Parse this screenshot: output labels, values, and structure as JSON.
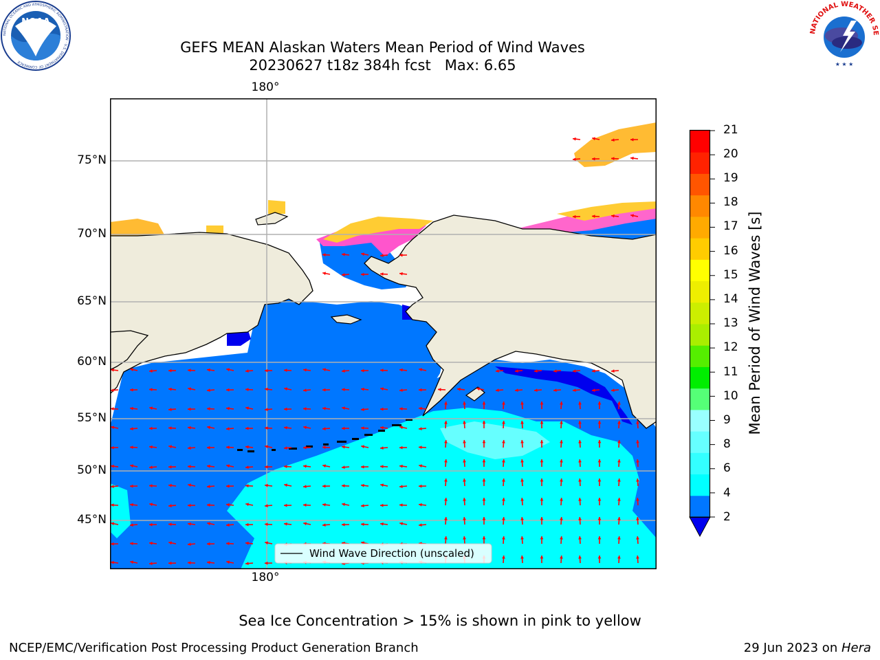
{
  "header": {
    "title_line1": "GEFS MEAN Alaskan Waters Mean Period of Wind Waves",
    "title_line2": "20230627 t18z 384h fcst   Max: 6.65"
  },
  "logos": {
    "noaa_text": "NOAA",
    "noaa_ring": "NATIONAL OCEANIC AND ATMOSPHERIC ADMINISTRATION · U.S. DEPARTMENT OF COMMERCE",
    "nws_ring": "NATIONAL WEATHER SERVICE"
  },
  "map": {
    "lon_label_top": "180°",
    "lon_label_bottom": "180°",
    "lat_labels": [
      "75°N",
      "70°N",
      "65°N",
      "60°N",
      "55°N",
      "50°N",
      "45°N"
    ],
    "legend_label": "Wind Wave Direction (unscaled)",
    "land_color": "#efecdc",
    "grid_color": "#b0b0b0",
    "arrow_color": "#ff0000"
  },
  "colorbar": {
    "label": "Mean Period of Wind Waves [s]",
    "ticks": [
      "21",
      "20",
      "19",
      "18",
      "17",
      "16",
      "15",
      "14",
      "13",
      "12",
      "11",
      "10",
      "9",
      "8",
      "6",
      "4",
      "2"
    ],
    "colors_bottom_to_top": [
      "#0077ff",
      "#00ffff",
      "#33ffff",
      "#66ffff",
      "#99ffff",
      "#55ff77",
      "#00ee00",
      "#55ee00",
      "#aaee00",
      "#ccee00",
      "#eeee00",
      "#ffff00",
      "#ffcc00",
      "#ffaa00",
      "#ff8800",
      "#ff5500",
      "#ff2200",
      "#ff0000"
    ],
    "under_color": "#0000ee"
  },
  "footer": {
    "sea_ice_note": "Sea Ice Concentration > 15% is shown in pink to yellow",
    "branch": "NCEP/EMC/Verification Post Processing Product Generation Branch",
    "date_prefix": "29 Jun 2023 on ",
    "date_host": "Hera"
  }
}
